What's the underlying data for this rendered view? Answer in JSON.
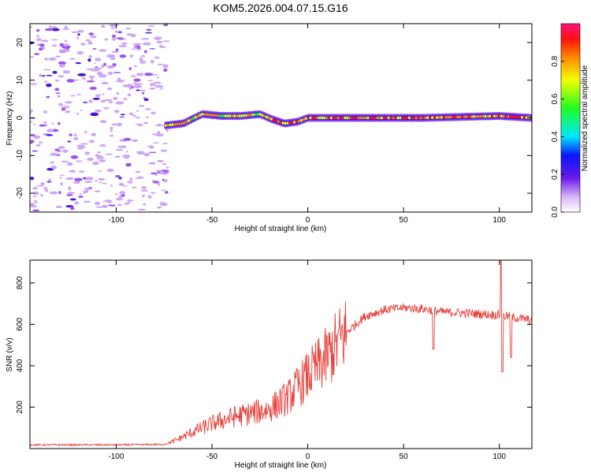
{
  "title": "KOM5.2026.004.07.15.G16",
  "chart_data": [
    {
      "type": "heatmap",
      "title": "KOM5.2026.004.07.15.G16",
      "xlabel": "Height of straight line (km)",
      "ylabel": "Frequency (Hz)",
      "xlim": [
        -145,
        117
      ],
      "ylim": [
        -25,
        25
      ],
      "xticks": [
        -100,
        -50,
        0,
        50,
        100
      ],
      "yticks": [
        -20,
        -10,
        0,
        10,
        20
      ],
      "colorbar": {
        "label": "Normalized spectral amplitude",
        "range": [
          0,
          1
        ],
        "ticks": [
          0.0,
          0.2,
          0.4,
          0.6,
          0.8
        ]
      },
      "signal_track": {
        "description_points_x": [
          -74,
          -65,
          -55,
          -45,
          -35,
          -25,
          -18,
          -12,
          -5,
          0,
          10,
          30,
          60,
          100,
          117
        ],
        "frequency_y": [
          -2,
          -1.5,
          1,
          0.5,
          0.5,
          1,
          -0.5,
          -1.5,
          -1,
          0,
          0,
          0,
          0,
          0.5,
          0
        ]
      }
    },
    {
      "type": "line",
      "xlabel": "Height of straight line (km)",
      "ylabel": "SNR (v/v)",
      "xlim": [
        -145,
        117
      ],
      "ylim": [
        0,
        910
      ],
      "xticks": [
        -100,
        -50,
        0,
        50,
        100
      ],
      "yticks": [
        200,
        400,
        600,
        800
      ],
      "series": [
        {
          "name": "SNR",
          "color": "#e8403a",
          "x": [
            -145,
            -100,
            -75,
            -70,
            -60,
            -50,
            -40,
            -30,
            -20,
            -10,
            0,
            10,
            20,
            30,
            40,
            50,
            60,
            70,
            80,
            90,
            100,
            110,
            117
          ],
          "y": [
            18,
            18,
            20,
            35,
            80,
            120,
            150,
            170,
            190,
            250,
            350,
            440,
            560,
            640,
            670,
            680,
            675,
            660,
            655,
            650,
            645,
            630,
            620
          ]
        }
      ]
    }
  ]
}
